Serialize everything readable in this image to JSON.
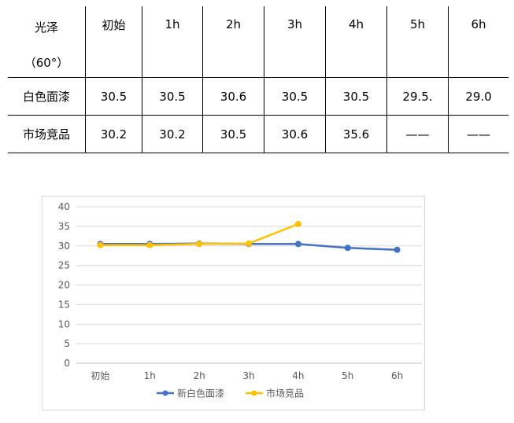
{
  "table": {
    "header": {
      "label_line1": "光泽",
      "label_line2": "（60°）",
      "columns": [
        "初始",
        "1h",
        "2h",
        "3h",
        "4h",
        "5h",
        "6h"
      ]
    },
    "rows": [
      {
        "label": "白色面漆",
        "cells": [
          "30.5",
          "30.5",
          "30.6",
          "30.5",
          "30.5",
          "29.5.",
          "29.0"
        ]
      },
      {
        "label": "市场竞品",
        "cells": [
          "30.2",
          "30.2",
          "30.5",
          "30.6",
          "35.6",
          "——",
          "——"
        ]
      }
    ]
  },
  "chart_data": {
    "type": "line",
    "categories": [
      "初始",
      "1h",
      "2h",
      "3h",
      "4h",
      "5h",
      "6h"
    ],
    "ylim": [
      0,
      40
    ],
    "yticks": [
      0,
      5,
      10,
      15,
      20,
      25,
      30,
      35,
      40
    ],
    "grid": true,
    "legend": "bottom",
    "series": [
      {
        "name": "新白色面漆",
        "color": "#4472C4",
        "values": [
          30.5,
          30.5,
          30.6,
          30.5,
          30.5,
          29.5,
          29.0
        ]
      },
      {
        "name": "市场竞品",
        "color": "#FFC000",
        "values": [
          30.2,
          30.2,
          30.5,
          30.6,
          35.6,
          null,
          null
        ]
      }
    ]
  }
}
